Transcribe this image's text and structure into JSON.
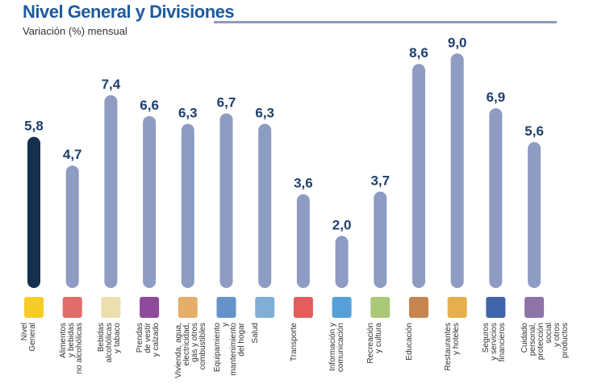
{
  "chart_data": {
    "type": "bar",
    "title": "Nivel General y Divisiones",
    "subtitle": "Variación (%) mensual",
    "categories": [
      "Nivel\nGeneral",
      "Alimentos\ny bebidas\nno alcohólicas",
      "Bebidas\nalcohólicas\ny tabaco",
      "Prendas\nde vestir\ny calzado",
      "Vivienda, agua,\nelectricidad,\ngas y otros\ncombustibles",
      "Equipamiento\ny mantenimiento\ndel hogar",
      "Salud",
      "Transporte",
      "Información y\ncomunicación",
      "Recreación\ny cultura",
      "Educación",
      "Restaurantes\ny hoteles",
      "Seguros\ny servicios\nfinancieros",
      "Cuidado personal,\nprotección social\ny otros productos"
    ],
    "values": [
      5.8,
      4.7,
      7.4,
      6.6,
      6.3,
      6.7,
      6.3,
      3.6,
      2.0,
      3.7,
      8.6,
      9.0,
      6.9,
      5.6
    ],
    "value_labels": [
      "5,8",
      "4,7",
      "7,4",
      "6,6",
      "6,3",
      "6,7",
      "6,3",
      "3,6",
      "2,0",
      "3,7",
      "8,6",
      "9,0",
      "6,9",
      "5,6"
    ],
    "icons": [
      "ipc-ba-logo-icon",
      "food-icon",
      "bottles-icon",
      "clothing-icon",
      "house-icon",
      "washing-machine-icon",
      "doctor-icon",
      "transport-icon",
      "computer-icon",
      "theater-masks-icon",
      "school-icon",
      "restaurant-icon",
      "bank-icon",
      "personal-care-icon"
    ],
    "colors": {
      "highlight": "#15304f",
      "bar": "#8e9bc2",
      "value_label": "#1f3f6e",
      "title": "#1f5a9c"
    },
    "ylim": [
      0,
      9.5
    ],
    "grid": false
  }
}
